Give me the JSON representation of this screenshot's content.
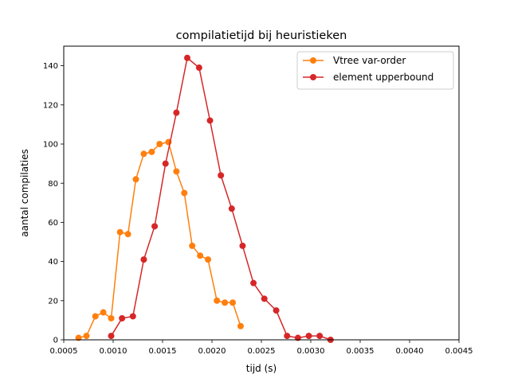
{
  "chart_data": {
    "type": "line",
    "title": "compilatietijd bij heuristieken",
    "xlabel": "tijd (s)",
    "ylabel": "aantal compilaties",
    "xlim": [
      0.0005,
      0.0045
    ],
    "ylim": [
      0,
      150
    ],
    "xticks": [
      "0.0005",
      "0.0010",
      "0.0015",
      "0.0020",
      "0.0025",
      "0.0030",
      "0.0035",
      "0.0040",
      "0.0045"
    ],
    "yticks": [
      "0",
      "20",
      "40",
      "60",
      "80",
      "100",
      "120",
      "140"
    ],
    "grid": false,
    "legend": "upper right",
    "series": [
      {
        "name": "Vtree var-order",
        "color": "#ff7f0e",
        "marker": "circle",
        "x": [
          0.00065,
          0.00073,
          0.00082,
          0.0009,
          0.00098,
          0.00107,
          0.00115,
          0.00123,
          0.00131,
          0.00139,
          0.00147,
          0.00156,
          0.00164,
          0.00172,
          0.0018,
          0.00188,
          0.00196,
          0.00205,
          0.00213,
          0.00221,
          0.00229
        ],
        "y": [
          1,
          2,
          12,
          14,
          11,
          55,
          54,
          82,
          95,
          96,
          100,
          101,
          86,
          75,
          48,
          43,
          41,
          20,
          19,
          19,
          7
        ]
      },
      {
        "name": "element upperbound",
        "color": "#d62728",
        "marker": "circle",
        "x": [
          0.00098,
          0.00109,
          0.0012,
          0.00131,
          0.00142,
          0.00153,
          0.00164,
          0.00175,
          0.00187,
          0.00198,
          0.00209,
          0.0022,
          0.00231,
          0.00242,
          0.00253,
          0.00265,
          0.00276,
          0.00287,
          0.00298,
          0.00309,
          0.0032
        ],
        "y": [
          2,
          11,
          12,
          41,
          58,
          90,
          116,
          144,
          139,
          112,
          84,
          67,
          48,
          29,
          21,
          15,
          2,
          1,
          2,
          2,
          0
        ]
      }
    ]
  }
}
